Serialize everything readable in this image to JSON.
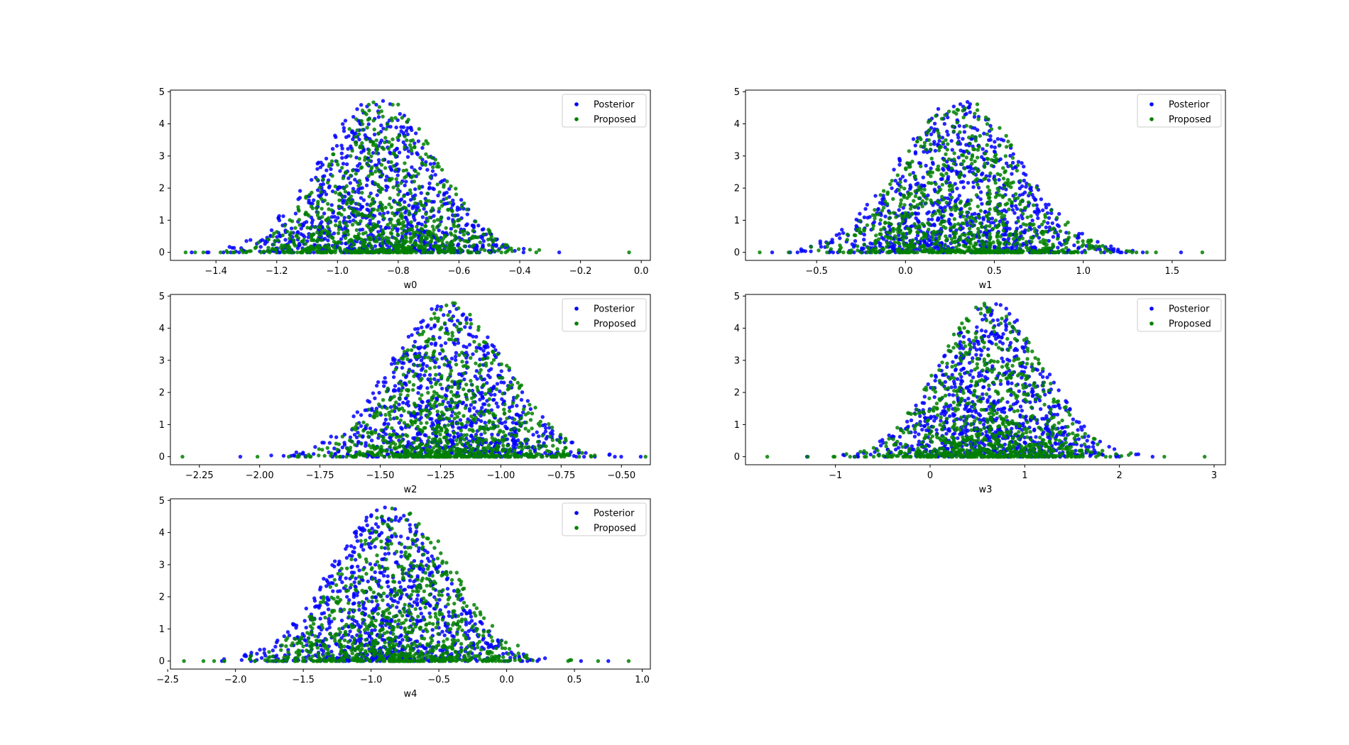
{
  "chart_data": [
    {
      "type": "scatter",
      "xlabel": "w0",
      "ylabel": "",
      "xlim": [
        -1.55,
        0.03
      ],
      "ylim": [
        -0.25,
        5.05
      ],
      "xticks": [
        "−1.4",
        "−1.2",
        "−1.0",
        "−0.8",
        "−0.6",
        "−0.4",
        "−0.2",
        "0.0"
      ],
      "yticks": [
        "0",
        "1",
        "2",
        "3",
        "4",
        "5"
      ],
      "legend_position": "upper-right",
      "series": [
        {
          "name": "Posterior",
          "color": "#0000ff",
          "center": -0.87,
          "spread": 0.19,
          "min": -1.48,
          "max": -0.27
        },
        {
          "name": "Proposed",
          "color": "#008000",
          "center": -0.85,
          "spread": 0.18,
          "min": -1.5,
          "max": -0.04
        }
      ]
    },
    {
      "type": "scatter",
      "xlabel": "w1",
      "ylabel": "",
      "xlim": [
        -0.9,
        1.8
      ],
      "ylim": [
        -0.25,
        5.05
      ],
      "xticks": [
        "−0.5",
        "0.0",
        "0.5",
        "1.0",
        "1.5"
      ],
      "yticks": [
        "0",
        "1",
        "2",
        "3",
        "4",
        "5"
      ],
      "legend_position": "upper-right",
      "series": [
        {
          "name": "Posterior",
          "color": "#0000ff",
          "center": 0.3,
          "spread": 0.34,
          "min": -0.75,
          "max": 1.55
        },
        {
          "name": "Proposed",
          "color": "#008000",
          "center": 0.32,
          "spread": 0.33,
          "min": -0.82,
          "max": 1.67
        }
      ]
    },
    {
      "type": "scatter",
      "xlabel": "w2",
      "ylabel": "",
      "xlim": [
        -2.37,
        -0.38
      ],
      "ylim": [
        -0.25,
        5.05
      ],
      "xticks": [
        "−2.25",
        "−2.00",
        "−1.75",
        "−1.50",
        "−1.25",
        "−1.00",
        "−0.75",
        "−0.50"
      ],
      "yticks": [
        "0",
        "1",
        "2",
        "3",
        "4",
        "5"
      ],
      "legend_position": "upper-right",
      "series": [
        {
          "name": "Posterior",
          "color": "#0000ff",
          "center": -1.22,
          "spread": 0.24,
          "min": -2.08,
          "max": -0.42
        },
        {
          "name": "Proposed",
          "color": "#008000",
          "center": -1.2,
          "spread": 0.23,
          "min": -2.32,
          "max": -0.4
        }
      ]
    },
    {
      "type": "scatter",
      "xlabel": "w3",
      "ylabel": "",
      "xlim": [
        -1.95,
        3.12
      ],
      "ylim": [
        -0.25,
        5.05
      ],
      "xticks": [
        "−1",
        "0",
        "1",
        "2",
        "3"
      ],
      "yticks": [
        "0",
        "1",
        "2",
        "3",
        "4",
        "5"
      ],
      "legend_position": "upper-right",
      "series": [
        {
          "name": "Posterior",
          "color": "#0000ff",
          "center": 0.65,
          "spread": 0.55,
          "min": -1.3,
          "max": 2.35
        },
        {
          "name": "Proposed",
          "color": "#008000",
          "center": 0.62,
          "spread": 0.55,
          "min": -1.72,
          "max": 2.9
        }
      ]
    },
    {
      "type": "scatter",
      "xlabel": "w4",
      "ylabel": "",
      "xlim": [
        -2.48,
        1.06
      ],
      "ylim": [
        -0.25,
        5.05
      ],
      "xticks": [
        "−2.5",
        "−2.0",
        "−1.5",
        "−1.0",
        "−0.5",
        "0.0",
        "0.5",
        "1.0"
      ],
      "yticks": [
        "0",
        "1",
        "2",
        "3",
        "4",
        "5"
      ],
      "legend_position": "upper-right",
      "series": [
        {
          "name": "Posterior",
          "color": "#0000ff",
          "center": -0.88,
          "spread": 0.42,
          "min": -2.1,
          "max": 0.75
        },
        {
          "name": "Proposed",
          "color": "#008000",
          "center": -0.8,
          "spread": 0.42,
          "min": -2.38,
          "max": 0.9
        }
      ]
    }
  ]
}
